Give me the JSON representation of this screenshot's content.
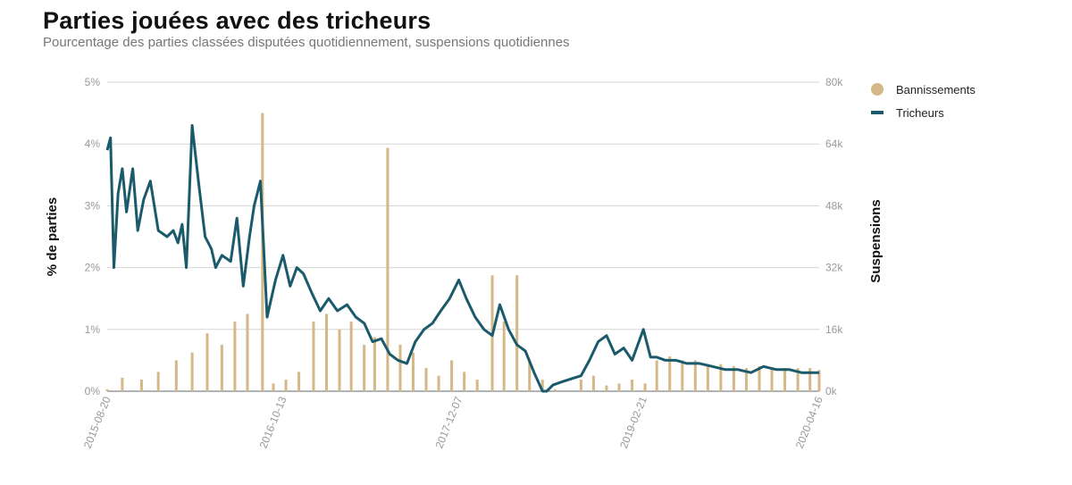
{
  "title": "Parties jouées avec des tricheurs",
  "subtitle": "Pourcentage des parties classées disputées quotidiennement, suspensions quotidiennes",
  "chart_data": {
    "type": "line+bar",
    "ylabel_left": "% de parties",
    "ylabel_right": "Suspensions",
    "y_left_ticks": [
      "0%",
      "1%",
      "2%",
      "3%",
      "4%",
      "5%"
    ],
    "y_right_ticks": [
      "0k",
      "16k",
      "32k",
      "48k",
      "64k",
      "80k"
    ],
    "ylim_left": [
      0,
      5
    ],
    "ylim_right": [
      0,
      80000
    ],
    "x_tick_labels": [
      "2015-08-20",
      "2016-10-13",
      "2017-12-07",
      "2019-02-21",
      "2020-04-16"
    ],
    "xlim": [
      "2015-08-20",
      "2020-04-16"
    ],
    "grid": true,
    "legend_position": "top-right",
    "series": [
      {
        "name": "Bannissements",
        "type": "bar",
        "axis": "right",
        "color": "#d4b887",
        "x": [
          "2015-08-20",
          "2015-09-25",
          "2015-11-10",
          "2015-12-20",
          "2016-02-01",
          "2016-03-10",
          "2016-04-15",
          "2016-05-20",
          "2016-06-20",
          "2016-07-20",
          "2016-08-25",
          "2016-09-20",
          "2016-10-20",
          "2016-11-20",
          "2016-12-25",
          "2017-01-25",
          "2017-02-25",
          "2017-03-25",
          "2017-04-25",
          "2017-05-20",
          "2017-06-20",
          "2017-07-20",
          "2017-08-20",
          "2017-09-20",
          "2017-10-20",
          "2017-11-20",
          "2017-12-20",
          "2018-01-20",
          "2018-02-25",
          "2018-03-25",
          "2018-04-25",
          "2018-05-25",
          "2018-06-25",
          "2018-07-25",
          "2018-08-25",
          "2018-09-25",
          "2018-10-25",
          "2018-11-25",
          "2018-12-25",
          "2019-01-25",
          "2019-02-25",
          "2019-03-25",
          "2019-04-25",
          "2019-05-25",
          "2019-06-25",
          "2019-07-25",
          "2019-08-25",
          "2019-09-25",
          "2019-10-25",
          "2019-11-25",
          "2019-12-25",
          "2020-01-25",
          "2020-02-25",
          "2020-03-25",
          "2020-04-16"
        ],
        "values": [
          500,
          3500,
          3000,
          5000,
          8000,
          10000,
          15000,
          12000,
          18000,
          20000,
          72000,
          2000,
          3000,
          5000,
          18000,
          20000,
          16000,
          18000,
          12000,
          14000,
          63000,
          12000,
          10000,
          6000,
          4000,
          8000,
          5000,
          3000,
          30000,
          18000,
          30000,
          8000,
          3000,
          500,
          0,
          3000,
          4000,
          1500,
          2000,
          3000,
          2000,
          8000,
          9000,
          8000,
          8000,
          7000,
          7000,
          6500,
          6000,
          6500,
          6000,
          6000,
          6000,
          6000,
          5500
        ]
      },
      {
        "name": "Tricheurs",
        "type": "line",
        "axis": "left",
        "color": "#1b5a6b",
        "x": [
          "2015-08-20",
          "2015-08-28",
          "2015-09-05",
          "2015-09-15",
          "2015-09-25",
          "2015-10-05",
          "2015-10-20",
          "2015-11-01",
          "2015-11-15",
          "2015-12-01",
          "2015-12-20",
          "2016-01-10",
          "2016-01-25",
          "2016-02-05",
          "2016-02-15",
          "2016-02-25",
          "2016-03-10",
          "2016-03-25",
          "2016-04-10",
          "2016-04-25",
          "2016-05-05",
          "2016-05-20",
          "2016-06-10",
          "2016-06-25",
          "2016-07-10",
          "2016-07-25",
          "2016-08-05",
          "2016-08-20",
          "2016-09-05",
          "2016-09-25",
          "2016-10-13",
          "2016-10-30",
          "2016-11-15",
          "2016-12-01",
          "2016-12-20",
          "2017-01-10",
          "2017-01-30",
          "2017-02-20",
          "2017-03-15",
          "2017-04-05",
          "2017-04-25",
          "2017-05-15",
          "2017-06-05",
          "2017-06-25",
          "2017-07-15",
          "2017-08-05",
          "2017-08-25",
          "2017-09-15",
          "2017-10-05",
          "2017-10-25",
          "2017-11-15",
          "2017-12-07",
          "2017-12-25",
          "2018-01-15",
          "2018-02-05",
          "2018-02-25",
          "2018-03-15",
          "2018-04-05",
          "2018-04-25",
          "2018-05-15",
          "2018-06-05",
          "2018-06-25",
          "2018-07-05",
          "2018-07-20",
          "2018-08-10",
          "2018-09-01",
          "2018-09-25",
          "2018-10-15",
          "2018-11-05",
          "2018-11-25",
          "2018-12-15",
          "2019-01-05",
          "2019-01-25",
          "2019-02-21",
          "2019-03-10",
          "2019-03-25",
          "2019-04-15",
          "2019-05-10",
          "2019-06-05",
          "2019-07-05",
          "2019-08-05",
          "2019-09-05",
          "2019-10-05",
          "2019-11-05",
          "2019-12-05",
          "2020-01-05",
          "2020-02-05",
          "2020-03-05",
          "2020-04-16"
        ],
        "values": [
          3.9,
          4.1,
          2.0,
          3.2,
          3.6,
          2.9,
          3.6,
          2.6,
          3.1,
          3.4,
          2.6,
          2.5,
          2.6,
          2.4,
          2.7,
          2.0,
          4.3,
          3.4,
          2.5,
          2.3,
          2.0,
          2.2,
          2.1,
          2.8,
          1.7,
          2.5,
          3.0,
          3.4,
          1.2,
          1.8,
          2.2,
          1.7,
          2.0,
          1.9,
          1.6,
          1.3,
          1.5,
          1.3,
          1.4,
          1.2,
          1.1,
          0.8,
          0.85,
          0.6,
          0.5,
          0.45,
          0.8,
          1.0,
          1.1,
          1.3,
          1.5,
          1.8,
          1.5,
          1.2,
          1.0,
          0.9,
          1.4,
          1.0,
          0.75,
          0.65,
          0.3,
          0.0,
          0.0,
          0.1,
          0.15,
          0.2,
          0.25,
          0.5,
          0.8,
          0.9,
          0.6,
          0.7,
          0.5,
          1.0,
          0.55,
          0.55,
          0.5,
          0.5,
          0.45,
          0.45,
          0.4,
          0.35,
          0.35,
          0.3,
          0.4,
          0.35,
          0.35,
          0.3,
          0.3
        ]
      }
    ]
  }
}
